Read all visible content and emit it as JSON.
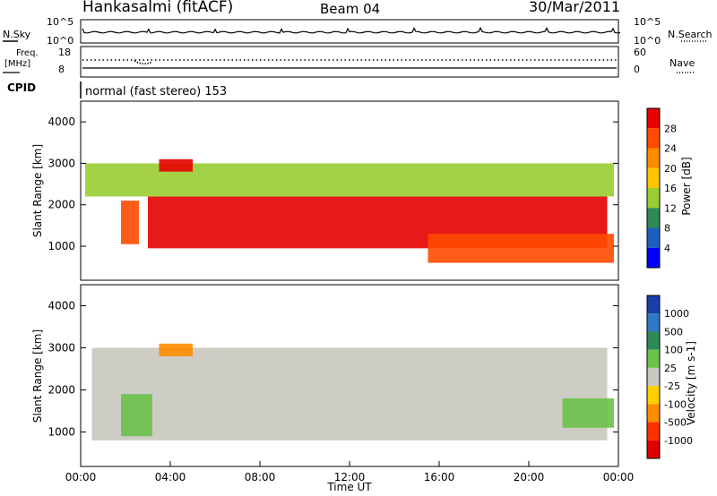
{
  "header": {
    "station": "Hankasalmi (fitACF)",
    "beam": "Beam 04",
    "date": "30/Mar/2011"
  },
  "top_panel": {
    "left_label": "N.Sky",
    "right_label": "N.Search",
    "left_ticks": [
      "10^5",
      "10^0"
    ],
    "right_ticks": [
      "10^5",
      "10^0"
    ]
  },
  "freq_panel": {
    "left_label_1": "Freq.",
    "left_label_2": "[MHz]",
    "left_ticks": [
      "18",
      "8"
    ],
    "right_ticks": [
      "60",
      "0"
    ],
    "right_label": "Nave"
  },
  "cpid": {
    "label": "CPID",
    "text": "normal (fast stereo) 153"
  },
  "x_axis": {
    "ticks": [
      "00:00",
      "04:00",
      "08:00",
      "12:00",
      "16:00",
      "20:00",
      "00:00"
    ],
    "label": "Time UT"
  },
  "power_panel": {
    "ylabel": "Slant Range [km]",
    "yticks": [
      "1000",
      "2000",
      "3000",
      "4000"
    ],
    "colorbar_label": "Power [dB]",
    "colorbar_ticks": [
      "28",
      "24",
      "20",
      "16",
      "12",
      "8",
      "4"
    ],
    "colors": [
      "#e60000",
      "#ff4a00",
      "#ff8c00",
      "#ffc400",
      "#9acd32",
      "#2e8b57",
      "#1e5fbe",
      "#0000ff"
    ]
  },
  "velocity_panel": {
    "ylabel": "Slant Range [km]",
    "yticks": [
      "1000",
      "2000",
      "3000",
      "4000"
    ],
    "colorbar_label": "Velocity [m s-1]",
    "colorbar_ticks": [
      "1000",
      "500",
      "100",
      "25",
      "-25",
      "-100",
      "-500",
      "-1000"
    ],
    "colors": [
      "#1a3ea8",
      "#2f78c4",
      "#2e8b57",
      "#6cc24a",
      "#c8c8c0",
      "#ffd000",
      "#ff8c00",
      "#ff3000",
      "#e00000"
    ]
  },
  "chart_data": {
    "type": "heatmap",
    "x_unit": "hours UT",
    "x_range": [
      0,
      24
    ],
    "y_range": [
      180,
      4500
    ],
    "power_bands": [
      {
        "t0": 1.8,
        "t1": 2.6,
        "r0": 1050,
        "r1": 2100,
        "power_db": 24
      },
      {
        "t0": 3.0,
        "t1": 23.5,
        "r0": 950,
        "r1": 2200,
        "power_db": 28
      },
      {
        "t0": 0.2,
        "t1": 23.8,
        "r0": 2200,
        "r1": 3000,
        "power_db": 12
      },
      {
        "t0": 15.5,
        "t1": 23.8,
        "r0": 600,
        "r1": 1300,
        "power_db": 24
      },
      {
        "t0": 3.5,
        "t1": 5.0,
        "r0": 2800,
        "r1": 3100,
        "power_db": 26
      }
    ],
    "velocity_bands": [
      {
        "t0": 0.5,
        "t1": 23.5,
        "r0": 800,
        "r1": 3000,
        "velocity": 0
      },
      {
        "t0": 1.8,
        "t1": 3.2,
        "r0": 900,
        "r1": 1900,
        "velocity": 60
      },
      {
        "t0": 21.5,
        "t1": 23.8,
        "r0": 1100,
        "r1": 1800,
        "velocity": 60
      },
      {
        "t0": 3.5,
        "t1": 5.0,
        "r0": 2800,
        "r1": 3100,
        "velocity": -200
      }
    ]
  }
}
